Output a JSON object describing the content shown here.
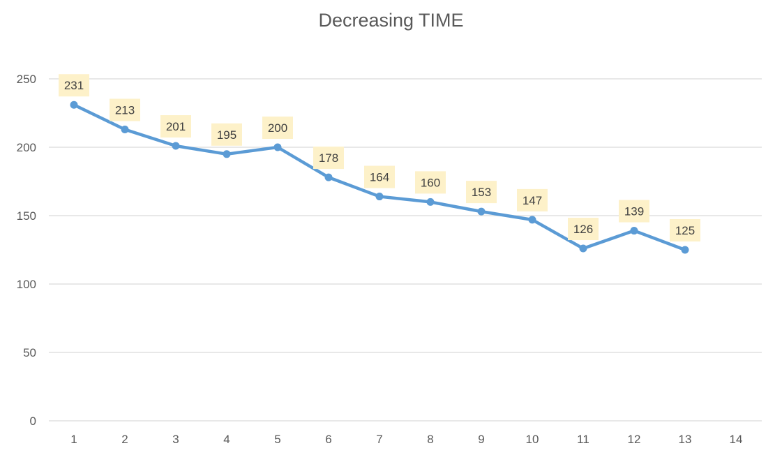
{
  "chart_data": {
    "type": "line",
    "title": "Decreasing TIME",
    "xlabel": "",
    "ylabel": "",
    "x": [
      1,
      2,
      3,
      4,
      5,
      6,
      7,
      8,
      9,
      10,
      11,
      12,
      13
    ],
    "x_ticks": [
      "1",
      "2",
      "3",
      "4",
      "5",
      "6",
      "7",
      "8",
      "9",
      "10",
      "11",
      "12",
      "13",
      "14"
    ],
    "y_ticks": [
      "0",
      "50",
      "100",
      "150",
      "200",
      "250"
    ],
    "ylim": [
      0,
      250
    ],
    "xlim": [
      1,
      14
    ],
    "grid": true,
    "legend": "none",
    "series": [
      {
        "values": [
          231,
          213,
          201,
          195,
          200,
          178,
          164,
          160,
          153,
          147,
          126,
          139,
          125
        ],
        "color": "#5b9bd5",
        "data_labels": true
      }
    ],
    "colors": {
      "line": "#5b9bd5",
      "gridline": "#d9d9d9",
      "axis_text": "#595959",
      "title_text": "#595959",
      "label_fill": "#fdf1c9",
      "label_text": "#404040"
    }
  }
}
